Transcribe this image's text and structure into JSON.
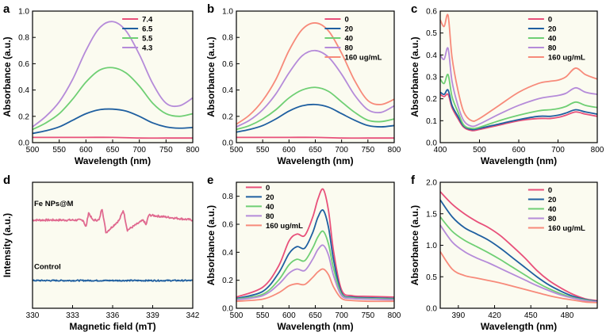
{
  "chart_data": [
    {
      "panel_label": "a",
      "type": "line",
      "xlabel": "Wavelength (nm)",
      "ylabel": "Absorbance (a.u.)",
      "xlim": [
        500,
        800
      ],
      "ylim": [
        0,
        1.0
      ],
      "xticks": [
        500,
        550,
        600,
        650,
        700,
        750,
        800
      ],
      "yticks": [
        0.0,
        0.2,
        0.4,
        0.6,
        0.8,
        1.0
      ],
      "ytick_labels": [
        "0.0",
        "0.2",
        "0.4",
        "0.6",
        "0.8",
        "1.0"
      ],
      "legend_position": "top-right",
      "series": [
        {
          "name": "7.4",
          "color": "#e8507a",
          "x": [
            500,
            550,
            600,
            650,
            700,
            750,
            800
          ],
          "y": [
            0.04,
            0.04,
            0.04,
            0.04,
            0.035,
            0.035,
            0.035
          ]
        },
        {
          "name": "6.5",
          "color": "#1f5fa0",
          "x": [
            500,
            525,
            550,
            575,
            600,
            625,
            650,
            675,
            700,
            725,
            750,
            775,
            800
          ],
          "y": [
            0.07,
            0.09,
            0.12,
            0.17,
            0.22,
            0.25,
            0.255,
            0.24,
            0.2,
            0.15,
            0.12,
            0.11,
            0.115
          ]
        },
        {
          "name": "5.5",
          "color": "#6fcf74",
          "x": [
            500,
            525,
            550,
            575,
            600,
            625,
            650,
            675,
            700,
            725,
            750,
            775,
            800
          ],
          "y": [
            0.1,
            0.15,
            0.22,
            0.33,
            0.46,
            0.55,
            0.57,
            0.53,
            0.43,
            0.3,
            0.22,
            0.2,
            0.22
          ]
        },
        {
          "name": "4.3",
          "color": "#b58bd9",
          "x": [
            500,
            525,
            550,
            575,
            600,
            625,
            650,
            675,
            700,
            725,
            750,
            775,
            800
          ],
          "y": [
            0.12,
            0.2,
            0.31,
            0.48,
            0.7,
            0.87,
            0.92,
            0.85,
            0.67,
            0.45,
            0.3,
            0.28,
            0.34
          ]
        }
      ]
    },
    {
      "panel_label": "b",
      "type": "line",
      "xlabel": "Wavelength (nm)",
      "ylabel": "Absorbance (a.u.)",
      "xlim": [
        500,
        800
      ],
      "ylim": [
        0,
        1.0
      ],
      "xticks": [
        500,
        550,
        600,
        650,
        700,
        750,
        800
      ],
      "yticks": [
        0.0,
        0.2,
        0.4,
        0.6,
        0.8,
        1.0
      ],
      "ytick_labels": [
        "0.0",
        "0.2",
        "0.4",
        "0.6",
        "0.8",
        "1.0"
      ],
      "legend_position": "top-right",
      "series": [
        {
          "name": "0",
          "color": "#e8507a",
          "x": [
            500,
            550,
            600,
            650,
            700,
            750,
            800
          ],
          "y": [
            0.04,
            0.04,
            0.04,
            0.04,
            0.035,
            0.035,
            0.035
          ]
        },
        {
          "name": "20",
          "color": "#1f5fa0",
          "x": [
            500,
            525,
            550,
            575,
            600,
            625,
            650,
            675,
            700,
            725,
            750,
            775,
            800
          ],
          "y": [
            0.08,
            0.1,
            0.13,
            0.18,
            0.24,
            0.28,
            0.29,
            0.27,
            0.22,
            0.17,
            0.13,
            0.12,
            0.13
          ]
        },
        {
          "name": "40",
          "color": "#6fcf74",
          "x": [
            500,
            525,
            550,
            575,
            600,
            625,
            650,
            675,
            700,
            725,
            750,
            775,
            800
          ],
          "y": [
            0.1,
            0.13,
            0.18,
            0.25,
            0.34,
            0.4,
            0.42,
            0.39,
            0.31,
            0.23,
            0.17,
            0.16,
            0.18
          ]
        },
        {
          "name": "80",
          "color": "#b58bd9",
          "x": [
            500,
            525,
            550,
            575,
            600,
            625,
            650,
            675,
            700,
            725,
            750,
            775,
            800
          ],
          "y": [
            0.12,
            0.17,
            0.25,
            0.37,
            0.53,
            0.66,
            0.7,
            0.65,
            0.52,
            0.36,
            0.25,
            0.23,
            0.28
          ]
        },
        {
          "name": "160 ug/mL",
          "color": "#f78a7a",
          "x": [
            500,
            525,
            550,
            575,
            600,
            625,
            650,
            675,
            700,
            725,
            750,
            775,
            800
          ],
          "y": [
            0.14,
            0.21,
            0.32,
            0.48,
            0.7,
            0.86,
            0.91,
            0.85,
            0.68,
            0.47,
            0.32,
            0.29,
            0.33
          ]
        }
      ]
    },
    {
      "panel_label": "c",
      "type": "line",
      "xlabel": "Wavelength (nm)",
      "ylabel": "Absorbance (a.u.)",
      "xlim": [
        400,
        800
      ],
      "ylim": [
        0,
        0.6
      ],
      "xticks": [
        400,
        500,
        600,
        700,
        800
      ],
      "yticks": [
        0.0,
        0.1,
        0.2,
        0.3,
        0.4,
        0.5,
        0.6
      ],
      "ytick_labels": [
        "0.0",
        "0.1",
        "0.2",
        "0.3",
        "0.4",
        "0.5",
        "0.6"
      ],
      "legend_position": "top-right",
      "series": [
        {
          "name": "0",
          "color": "#e8507a",
          "x": [
            400,
            410,
            420,
            430,
            445,
            460,
            480,
            500,
            550,
            600,
            650,
            680,
            700,
            720,
            745,
            770,
            800
          ],
          "y": [
            0.22,
            0.21,
            0.22,
            0.16,
            0.11,
            0.07,
            0.055,
            0.06,
            0.08,
            0.1,
            0.11,
            0.11,
            0.115,
            0.125,
            0.14,
            0.13,
            0.12
          ]
        },
        {
          "name": "20",
          "color": "#1f5fa0",
          "x": [
            400,
            410,
            420,
            430,
            445,
            460,
            480,
            500,
            550,
            600,
            650,
            680,
            700,
            720,
            745,
            770,
            800
          ],
          "y": [
            0.23,
            0.22,
            0.24,
            0.17,
            0.12,
            0.075,
            0.06,
            0.065,
            0.085,
            0.105,
            0.12,
            0.12,
            0.125,
            0.135,
            0.15,
            0.14,
            0.13
          ]
        },
        {
          "name": "40",
          "color": "#6fcf74",
          "x": [
            400,
            410,
            420,
            430,
            445,
            460,
            480,
            500,
            550,
            600,
            650,
            680,
            700,
            720,
            745,
            770,
            800
          ],
          "y": [
            0.29,
            0.27,
            0.31,
            0.21,
            0.14,
            0.08,
            0.065,
            0.07,
            0.1,
            0.125,
            0.145,
            0.15,
            0.155,
            0.165,
            0.185,
            0.17,
            0.16
          ]
        },
        {
          "name": "80",
          "color": "#b58bd9",
          "x": [
            400,
            410,
            420,
            430,
            445,
            460,
            480,
            500,
            550,
            600,
            650,
            680,
            700,
            720,
            745,
            770,
            800
          ],
          "y": [
            0.4,
            0.38,
            0.43,
            0.28,
            0.17,
            0.1,
            0.075,
            0.085,
            0.13,
            0.17,
            0.2,
            0.21,
            0.215,
            0.225,
            0.25,
            0.23,
            0.22
          ]
        },
        {
          "name": "160 ug/mL",
          "color": "#f78a7a",
          "x": [
            400,
            410,
            420,
            430,
            445,
            460,
            480,
            500,
            550,
            600,
            650,
            680,
            700,
            720,
            745,
            770,
            800
          ],
          "y": [
            0.56,
            0.53,
            0.58,
            0.39,
            0.24,
            0.14,
            0.1,
            0.11,
            0.17,
            0.23,
            0.27,
            0.28,
            0.285,
            0.3,
            0.34,
            0.31,
            0.29
          ]
        }
      ]
    },
    {
      "panel_label": "d",
      "type": "line",
      "xlabel": "Magnetic field (mT)",
      "ylabel": "Intensity (a.u.)",
      "xlim": [
        330,
        342
      ],
      "ylim": [
        0,
        1
      ],
      "xticks": [
        330,
        333,
        336,
        339,
        342
      ],
      "yticks": [],
      "ytick_labels": [],
      "legend_position": "none",
      "annotations": [
        {
          "text": "Fe NPs@M",
          "series": 0
        },
        {
          "text": "Control",
          "series": 1
        }
      ],
      "series": [
        {
          "name": "Fe NPs@M",
          "color": "#e06a90",
          "noise": 0.008,
          "x": [
            330,
            333.8,
            334.0,
            334.2,
            334.5,
            335.0,
            335.2,
            335.5,
            336.5,
            336.8,
            337.1,
            338.3,
            338.5,
            338.7,
            342
          ],
          "y": [
            0.7,
            0.7,
            0.64,
            0.76,
            0.7,
            0.7,
            0.8,
            0.6,
            0.7,
            0.78,
            0.62,
            0.7,
            0.66,
            0.74,
            0.7
          ]
        },
        {
          "name": "Control",
          "color": "#1f5fa0",
          "noise": 0.005,
          "x": [
            330,
            342
          ],
          "y": [
            0.22,
            0.22
          ]
        }
      ]
    },
    {
      "panel_label": "e",
      "type": "line",
      "xlabel": "Wavelength (nm)",
      "ylabel": "Absorbance (a.u.)",
      "xlim": [
        500,
        800
      ],
      "ylim": [
        0,
        0.9
      ],
      "xticks": [
        500,
        550,
        600,
        650,
        700,
        750,
        800
      ],
      "yticks": [
        0.0,
        0.2,
        0.4,
        0.6,
        0.8
      ],
      "ytick_labels": [
        "0.0",
        "0.2",
        "0.4",
        "0.6",
        "0.8"
      ],
      "legend_position": "top-left",
      "series": [
        {
          "name": "0",
          "color": "#e8507a",
          "x": [
            500,
            550,
            580,
            600,
            615,
            630,
            645,
            655,
            665,
            675,
            685,
            700,
            720,
            750,
            800
          ],
          "y": [
            0.08,
            0.15,
            0.3,
            0.48,
            0.53,
            0.52,
            0.65,
            0.78,
            0.85,
            0.7,
            0.4,
            0.13,
            0.09,
            0.085,
            0.08
          ]
        },
        {
          "name": "20",
          "color": "#1f5fa0",
          "x": [
            500,
            550,
            580,
            600,
            615,
            630,
            645,
            655,
            665,
            675,
            685,
            700,
            720,
            750,
            800
          ],
          "y": [
            0.07,
            0.12,
            0.25,
            0.39,
            0.44,
            0.43,
            0.54,
            0.65,
            0.7,
            0.58,
            0.34,
            0.11,
            0.08,
            0.075,
            0.07
          ]
        },
        {
          "name": "40",
          "color": "#6fcf74",
          "x": [
            500,
            550,
            580,
            600,
            615,
            630,
            645,
            655,
            665,
            675,
            685,
            700,
            720,
            750,
            800
          ],
          "y": [
            0.065,
            0.1,
            0.2,
            0.31,
            0.35,
            0.34,
            0.43,
            0.51,
            0.55,
            0.46,
            0.28,
            0.1,
            0.075,
            0.07,
            0.065
          ]
        },
        {
          "name": "80",
          "color": "#b58bd9",
          "x": [
            500,
            550,
            580,
            600,
            615,
            630,
            645,
            655,
            665,
            675,
            685,
            700,
            720,
            750,
            800
          ],
          "y": [
            0.06,
            0.09,
            0.17,
            0.25,
            0.28,
            0.27,
            0.35,
            0.42,
            0.45,
            0.38,
            0.23,
            0.09,
            0.07,
            0.065,
            0.06
          ]
        },
        {
          "name": "160 ug/mL",
          "color": "#f78a7a",
          "x": [
            500,
            550,
            580,
            600,
            615,
            630,
            645,
            655,
            665,
            675,
            685,
            700,
            720,
            750,
            800
          ],
          "y": [
            0.05,
            0.065,
            0.11,
            0.16,
            0.175,
            0.17,
            0.22,
            0.26,
            0.28,
            0.24,
            0.15,
            0.07,
            0.055,
            0.05,
            0.05
          ]
        }
      ]
    },
    {
      "panel_label": "f",
      "type": "line",
      "xlabel": "Wavelength (nm)",
      "ylabel": "Absorbance (a.u.)",
      "xlim": [
        375,
        505
      ],
      "ylim": [
        0,
        2.0
      ],
      "xticks": [
        390,
        420,
        450,
        480
      ],
      "yticks": [
        0.0,
        0.5,
        1.0,
        1.5,
        2.0
      ],
      "ytick_labels": [
        "0.0",
        "0.5",
        "1.0",
        "1.5",
        "2.0"
      ],
      "legend_position": "top-right",
      "series": [
        {
          "name": "0",
          "color": "#e8507a",
          "x": [
            375,
            385,
            395,
            405,
            415,
            425,
            435,
            445,
            455,
            465,
            475,
            485,
            495,
            505
          ],
          "y": [
            1.85,
            1.65,
            1.5,
            1.38,
            1.28,
            1.15,
            0.98,
            0.8,
            0.6,
            0.44,
            0.32,
            0.22,
            0.15,
            0.12
          ]
        },
        {
          "name": "20",
          "color": "#1f5fa0",
          "x": [
            375,
            385,
            395,
            405,
            415,
            425,
            435,
            445,
            455,
            465,
            475,
            485,
            495,
            505
          ],
          "y": [
            1.72,
            1.45,
            1.28,
            1.18,
            1.08,
            0.95,
            0.8,
            0.65,
            0.5,
            0.37,
            0.27,
            0.19,
            0.14,
            0.11
          ]
        },
        {
          "name": "40",
          "color": "#6fcf74",
          "x": [
            375,
            385,
            395,
            405,
            415,
            425,
            435,
            445,
            455,
            465,
            475,
            485,
            495,
            505
          ],
          "y": [
            1.45,
            1.22,
            1.08,
            0.98,
            0.88,
            0.77,
            0.65,
            0.53,
            0.41,
            0.31,
            0.23,
            0.17,
            0.13,
            0.1
          ]
        },
        {
          "name": "80",
          "color": "#b58bd9",
          "x": [
            375,
            385,
            395,
            405,
            415,
            425,
            435,
            445,
            455,
            465,
            475,
            485,
            495,
            505
          ],
          "y": [
            1.32,
            1.05,
            0.9,
            0.8,
            0.72,
            0.63,
            0.54,
            0.45,
            0.36,
            0.28,
            0.21,
            0.16,
            0.12,
            0.1
          ]
        },
        {
          "name": "160 ug/mL",
          "color": "#f78a7a",
          "x": [
            375,
            385,
            395,
            405,
            415,
            425,
            435,
            445,
            455,
            465,
            475,
            485,
            495,
            505
          ],
          "y": [
            0.9,
            0.62,
            0.52,
            0.48,
            0.44,
            0.4,
            0.35,
            0.3,
            0.25,
            0.2,
            0.16,
            0.13,
            0.1,
            0.09
          ]
        }
      ]
    }
  ]
}
